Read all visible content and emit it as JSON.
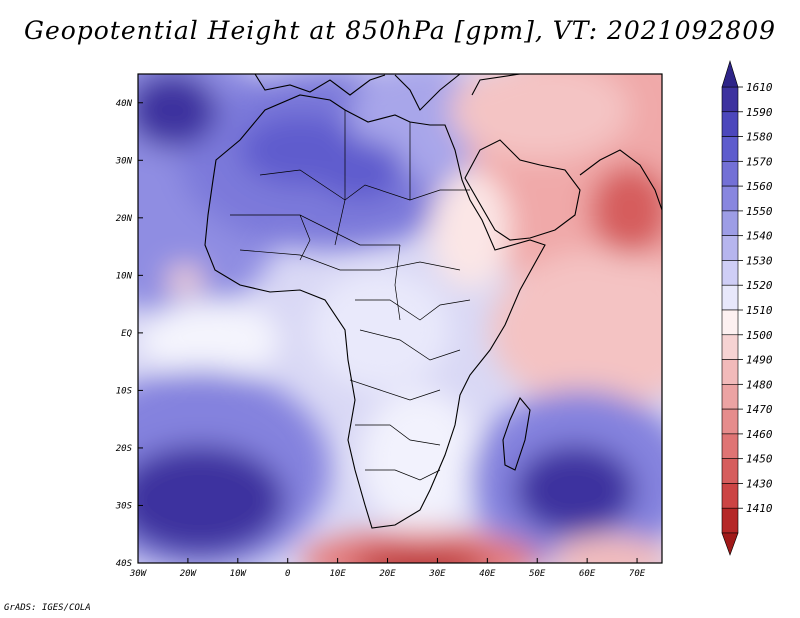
{
  "title": "Geopotential Height at 850hPa [gpm], VT: 2021092809",
  "credit": "GrADS: IGES/COLA",
  "map": {
    "region": "Africa and surrounding oceans",
    "lon_range": [
      -30,
      75
    ],
    "lat_range": [
      -40,
      45
    ],
    "lon_ticks": [
      "30W",
      "20W",
      "10W",
      "0",
      "10E",
      "20E",
      "30E",
      "40E",
      "50E",
      "60E",
      "70E"
    ],
    "lat_ticks": [
      "40N",
      "30N",
      "20N",
      "10N",
      "EQ",
      "10S",
      "20S",
      "30S",
      "40S"
    ],
    "high_centers": [
      {
        "label": "North Atlantic high",
        "lon": -22,
        "lat": 35,
        "value": 1600
      },
      {
        "label": "Saharan high",
        "lon": 8,
        "lat": 30,
        "value": 1580
      },
      {
        "label": "South Atlantic high",
        "lon": -20,
        "lat": -29,
        "value": 1600
      },
      {
        "label": "South Indian Ocean high",
        "lon": 58,
        "lat": -29,
        "value": 1600
      }
    ],
    "low_centers": [
      {
        "label": "Arabian Sea / Pakistan low",
        "lon": 70,
        "lat": 25,
        "value": 1450
      },
      {
        "label": "Southern Ocean low",
        "lon": 30,
        "lat": -39,
        "value": 1420
      }
    ]
  },
  "colorbar": {
    "levels": [
      "1610",
      "1590",
      "1580",
      "1570",
      "1560",
      "1550",
      "1540",
      "1530",
      "1520",
      "1510",
      "1500",
      "1490",
      "1480",
      "1470",
      "1460",
      "1450",
      "1430",
      "1410"
    ],
    "colors": [
      "#3d329f",
      "#4c47bc",
      "#5e5ccd",
      "#7370d6",
      "#8886df",
      "#9d9de6",
      "#b6b5ee",
      "#cfcef6",
      "#e8e8fb",
      "#fdf1f1",
      "#f6d3d3",
      "#f2baba",
      "#eca3a3",
      "#e68c8c",
      "#df7474",
      "#d65d5d",
      "#cc4444",
      "#b52727"
    ],
    "top_arrow_color": "#2e2488",
    "bottom_arrow_color": "#a01a1a"
  }
}
